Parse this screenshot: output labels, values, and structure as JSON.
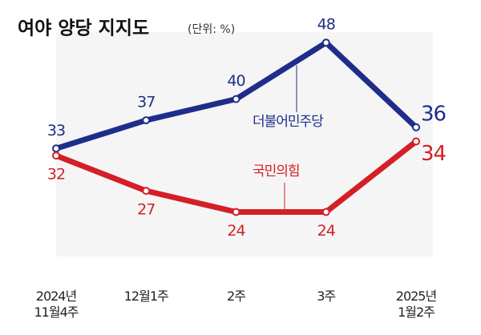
{
  "chart_data": {
    "type": "line",
    "title": "여야 양당 지지도",
    "subtitle": "(단위: %)",
    "categories": [
      "2024년\n11월4주",
      "12월1주",
      "2주",
      "3주",
      "2025년\n1월2주"
    ],
    "series": [
      {
        "name": "더불어민주당",
        "color": "#1f2d8a",
        "values": [
          33,
          37,
          40,
          48,
          36
        ]
      },
      {
        "name": "국민의힘",
        "color": "#d41f26",
        "values": [
          32,
          27,
          24,
          24,
          34
        ]
      }
    ],
    "ylim": [
      17.7,
      49.5
    ]
  }
}
